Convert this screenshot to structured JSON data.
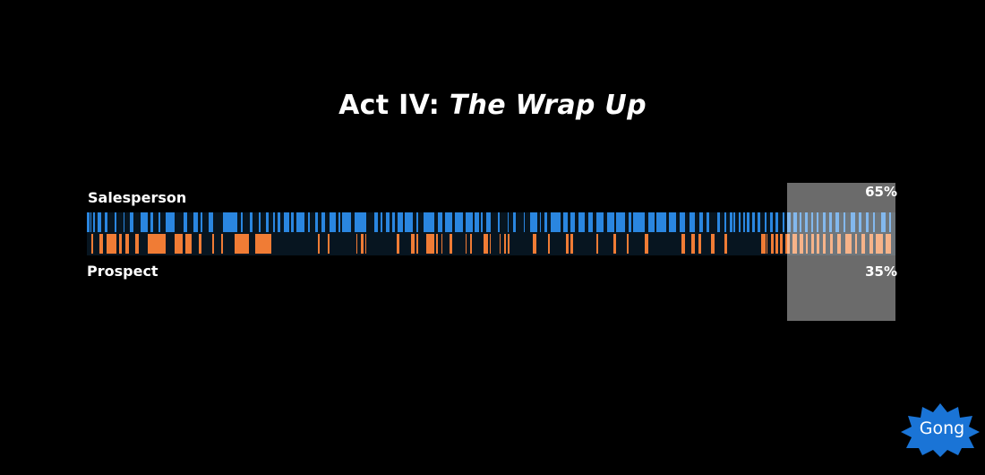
{
  "slide": {
    "title_prefix": "Act IV:",
    "title_emphasis": "The Wrap Up"
  },
  "tracks": {
    "salesperson": {
      "label": "Salesperson",
      "share": "65%",
      "color": "#2a86e0",
      "segments": [
        [
          0.0,
          0.003
        ],
        [
          0.004,
          0.006
        ],
        [
          0.008,
          0.01
        ],
        [
          0.013,
          0.018
        ],
        [
          0.022,
          0.026
        ],
        [
          0.034,
          0.037
        ],
        [
          0.045,
          0.047
        ],
        [
          0.053,
          0.058
        ],
        [
          0.066,
          0.075
        ],
        [
          0.079,
          0.082
        ],
        [
          0.089,
          0.091
        ],
        [
          0.097,
          0.108
        ],
        [
          0.12,
          0.124
        ],
        [
          0.132,
          0.137
        ],
        [
          0.141,
          0.143
        ],
        [
          0.151,
          0.156
        ],
        [
          0.168,
          0.186
        ],
        [
          0.191,
          0.193
        ],
        [
          0.201,
          0.205
        ],
        [
          0.213,
          0.215
        ],
        [
          0.222,
          0.225
        ],
        [
          0.23,
          0.233
        ],
        [
          0.236,
          0.239
        ],
        [
          0.244,
          0.25
        ],
        [
          0.252,
          0.256
        ],
        [
          0.259,
          0.269
        ],
        [
          0.273,
          0.276
        ],
        [
          0.282,
          0.286
        ],
        [
          0.29,
          0.295
        ],
        [
          0.3,
          0.308
        ],
        [
          0.311,
          0.313
        ],
        [
          0.316,
          0.327
        ],
        [
          0.331,
          0.345
        ],
        [
          0.355,
          0.36
        ],
        [
          0.363,
          0.366
        ],
        [
          0.37,
          0.374
        ],
        [
          0.378,
          0.381
        ],
        [
          0.384,
          0.391
        ],
        [
          0.393,
          0.403
        ],
        [
          0.407,
          0.41
        ],
        [
          0.416,
          0.43
        ],
        [
          0.434,
          0.44
        ],
        [
          0.443,
          0.452
        ],
        [
          0.455,
          0.465
        ],
        [
          0.468,
          0.477
        ],
        [
          0.48,
          0.485
        ],
        [
          0.487,
          0.49
        ],
        [
          0.494,
          0.5
        ],
        [
          0.508,
          0.51
        ],
        [
          0.52,
          0.522
        ],
        [
          0.527,
          0.53
        ],
        [
          0.54,
          0.542
        ],
        [
          0.548,
          0.557
        ],
        [
          0.56,
          0.562
        ],
        [
          0.566,
          0.569
        ],
        [
          0.574,
          0.586
        ],
        [
          0.589,
          0.595
        ],
        [
          0.598,
          0.604
        ],
        [
          0.608,
          0.616
        ],
        [
          0.62,
          0.626
        ],
        [
          0.63,
          0.639
        ],
        [
          0.643,
          0.652
        ],
        [
          0.655,
          0.666
        ],
        [
          0.67,
          0.673
        ],
        [
          0.676,
          0.69
        ],
        [
          0.694,
          0.702
        ],
        [
          0.704,
          0.716
        ],
        [
          0.72,
          0.729
        ],
        [
          0.733,
          0.74
        ],
        [
          0.745,
          0.752
        ],
        [
          0.757,
          0.762
        ],
        [
          0.766,
          0.77
        ],
        [
          0.78,
          0.783
        ],
        [
          0.789,
          0.791
        ],
        [
          0.795,
          0.798
        ],
        [
          0.8,
          0.802
        ],
        [
          0.806,
          0.808
        ],
        [
          0.812,
          0.814
        ],
        [
          0.816,
          0.82
        ],
        [
          0.823,
          0.826
        ],
        [
          0.83,
          0.833
        ],
        [
          0.838,
          0.84
        ],
        [
          0.845,
          0.848
        ],
        [
          0.852,
          0.855
        ],
        [
          0.86,
          0.863
        ],
        [
          0.866,
          0.87
        ],
        [
          0.874,
          0.878
        ],
        [
          0.882,
          0.884
        ],
        [
          0.888,
          0.892
        ],
        [
          0.896,
          0.898
        ],
        [
          0.903,
          0.905
        ],
        [
          0.91,
          0.914
        ],
        [
          0.918,
          0.921
        ],
        [
          0.926,
          0.93
        ],
        [
          0.936,
          0.938
        ],
        [
          0.945,
          0.95
        ],
        [
          0.955,
          0.958
        ],
        [
          0.964,
          0.967
        ],
        [
          0.972,
          0.975
        ],
        [
          0.982,
          0.988
        ],
        [
          0.992,
          0.995
        ]
      ]
    },
    "prospect": {
      "label": "Prospect",
      "share": "35%",
      "color": "#f07c35",
      "segments": [
        [
          0.005,
          0.008
        ],
        [
          0.015,
          0.02
        ],
        [
          0.024,
          0.036
        ],
        [
          0.04,
          0.043
        ],
        [
          0.048,
          0.052
        ],
        [
          0.06,
          0.064
        ],
        [
          0.075,
          0.097
        ],
        [
          0.108,
          0.118
        ],
        [
          0.122,
          0.13
        ],
        [
          0.138,
          0.142
        ],
        [
          0.155,
          0.157
        ],
        [
          0.166,
          0.168
        ],
        [
          0.183,
          0.2
        ],
        [
          0.208,
          0.228
        ],
        [
          0.286,
          0.288
        ],
        [
          0.298,
          0.3
        ],
        [
          0.333,
          0.335
        ],
        [
          0.339,
          0.342
        ],
        [
          0.344,
          0.346
        ],
        [
          0.383,
          0.386
        ],
        [
          0.401,
          0.405
        ],
        [
          0.408,
          0.41
        ],
        [
          0.42,
          0.43
        ],
        [
          0.432,
          0.434
        ],
        [
          0.438,
          0.44
        ],
        [
          0.449,
          0.452
        ],
        [
          0.468,
          0.47
        ],
        [
          0.474,
          0.476
        ],
        [
          0.491,
          0.496
        ],
        [
          0.498,
          0.5
        ],
        [
          0.51,
          0.512
        ],
        [
          0.516,
          0.518
        ],
        [
          0.521,
          0.523
        ],
        [
          0.551,
          0.556
        ],
        [
          0.57,
          0.572
        ],
        [
          0.593,
          0.596
        ],
        [
          0.598,
          0.601
        ],
        [
          0.63,
          0.632
        ],
        [
          0.651,
          0.654
        ],
        [
          0.668,
          0.67
        ],
        [
          0.69,
          0.694
        ],
        [
          0.735,
          0.74
        ],
        [
          0.748,
          0.752
        ],
        [
          0.756,
          0.76
        ],
        [
          0.772,
          0.776
        ],
        [
          0.789,
          0.792
        ],
        [
          0.834,
          0.839
        ],
        [
          0.84,
          0.842
        ],
        [
          0.846,
          0.849
        ],
        [
          0.852,
          0.855
        ],
        [
          0.857,
          0.86
        ],
        [
          0.864,
          0.869
        ],
        [
          0.873,
          0.878
        ],
        [
          0.882,
          0.886
        ],
        [
          0.889,
          0.892
        ],
        [
          0.896,
          0.899
        ],
        [
          0.903,
          0.906
        ],
        [
          0.91,
          0.914
        ],
        [
          0.919,
          0.922
        ],
        [
          0.928,
          0.932
        ],
        [
          0.938,
          0.946
        ],
        [
          0.95,
          0.952
        ],
        [
          0.958,
          0.962
        ],
        [
          0.968,
          0.972
        ],
        [
          0.976,
          0.985
        ],
        [
          0.988,
          0.994
        ]
      ]
    }
  },
  "branding": {
    "logo_text": "Gong",
    "logo_color": "#1a74d6"
  }
}
